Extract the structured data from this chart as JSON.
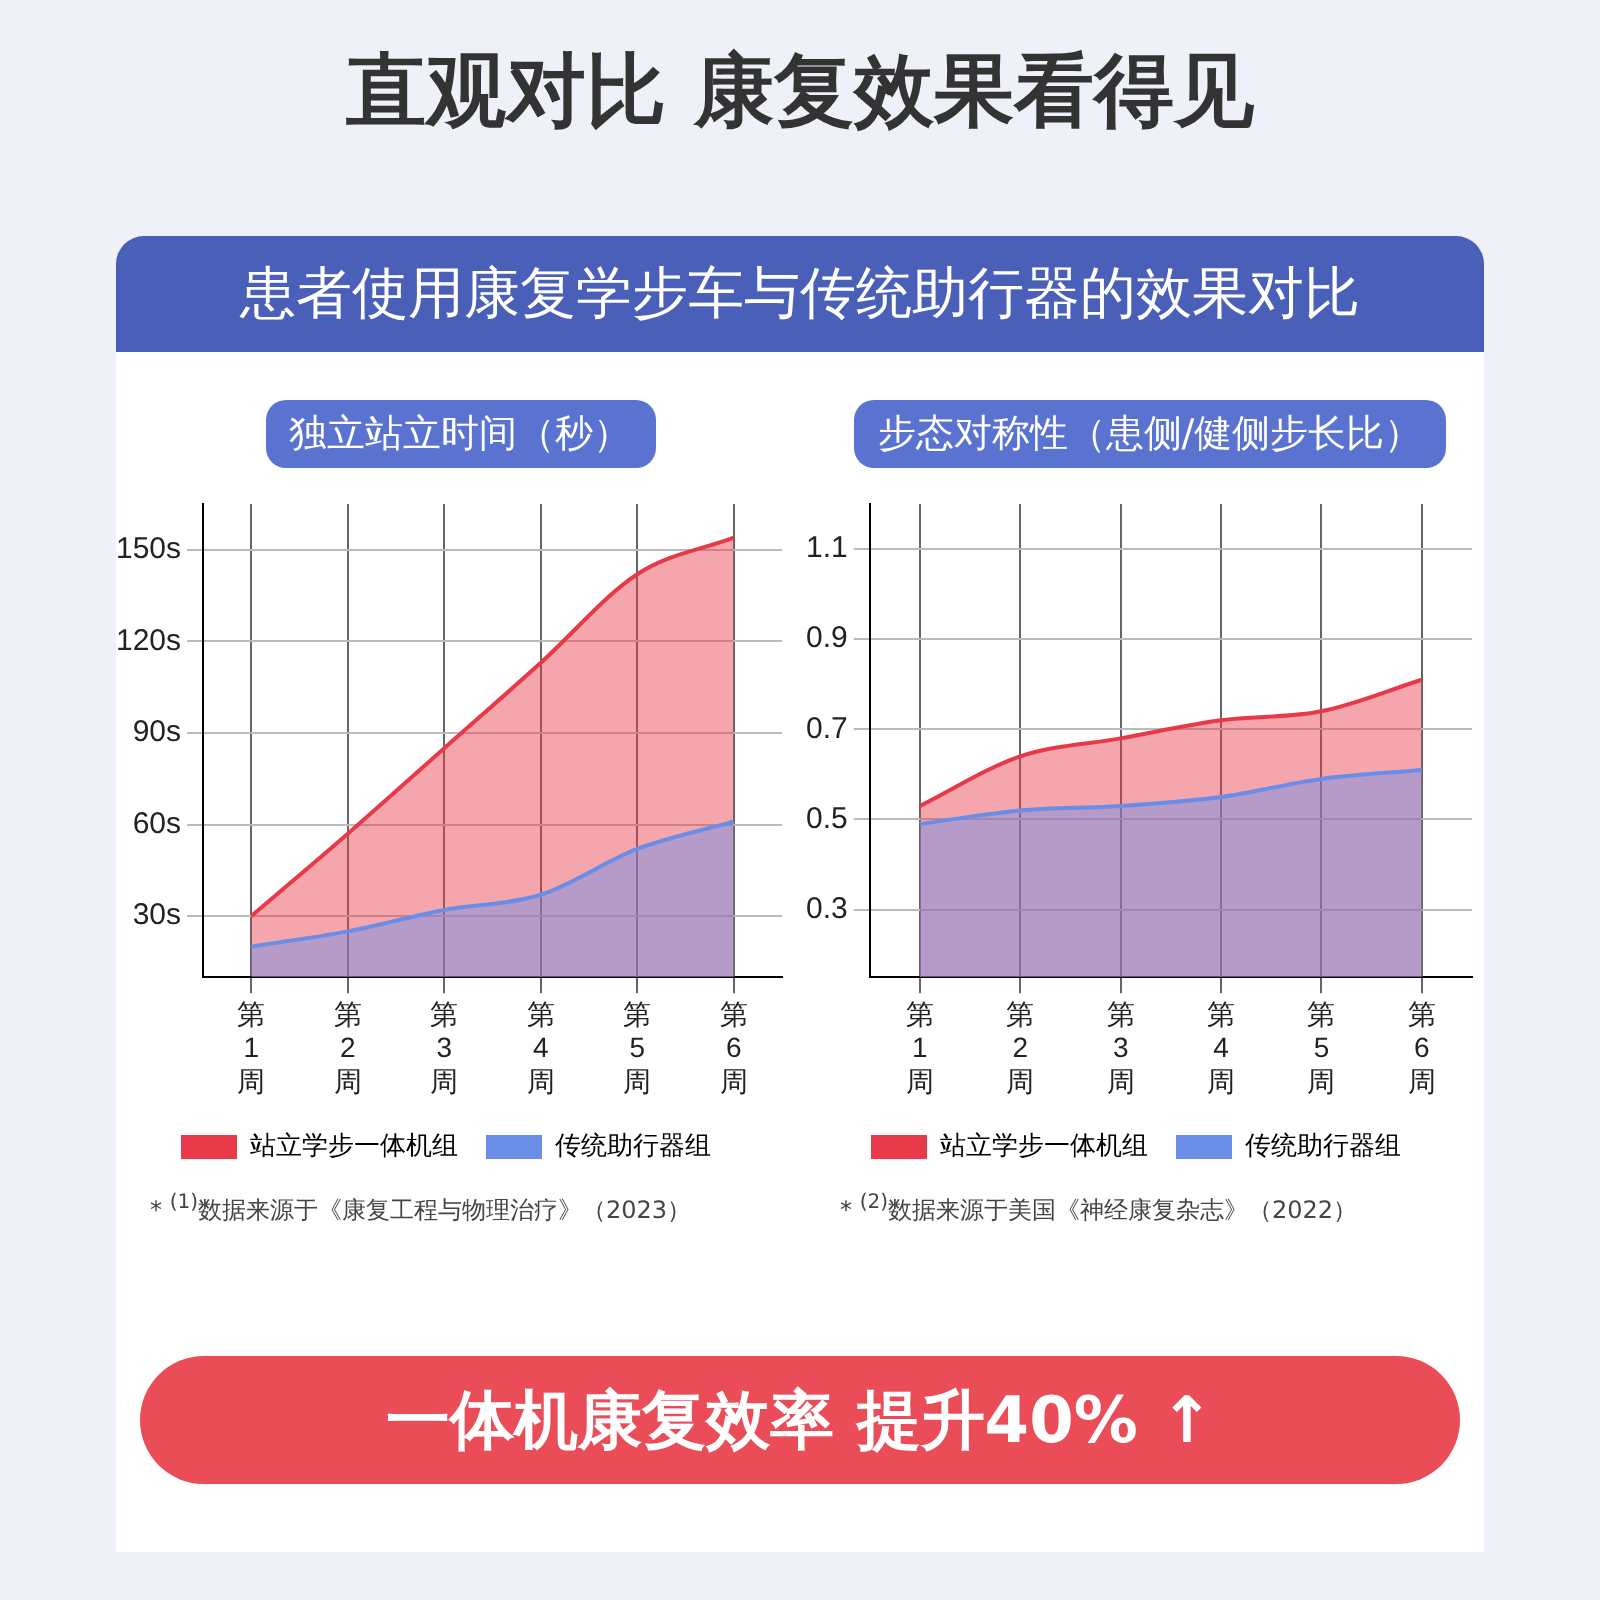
{
  "chart_data": [
    {
      "type": "area",
      "title": "独立站立时间（秒）",
      "categories": [
        "第1周",
        "第2周",
        "第3周",
        "第4周",
        "第5周",
        "第6周"
      ],
      "series": [
        {
          "name": "站立学步一体机组",
          "color": "#e8394a",
          "values": [
            30,
            57,
            85,
            113,
            142,
            154
          ]
        },
        {
          "name": "传统助行器组",
          "color": "#6a8ee8",
          "values": [
            20,
            25,
            32,
            37,
            52,
            61
          ]
        }
      ],
      "ylim": [
        10,
        165
      ],
      "yticks": [
        {
          "value": 30,
          "label": "30s"
        },
        {
          "value": 60,
          "label": "60s"
        },
        {
          "value": 90,
          "label": "90s"
        },
        {
          "value": 120,
          "label": "120s"
        },
        {
          "value": 150,
          "label": "150s"
        }
      ],
      "grid": true,
      "legend": "bottom",
      "marker": "none",
      "annotations": [
        "直观对比 康复效果看得见",
        "患者使用康复学步车与传统助行器的效果对比",
        "* $^{(1)}$数据来源于《康复工程与物理治疗》（2023）"
      ]
    },
    {
      "type": "area",
      "title": "步态对称性（患侧/健侧步长比）",
      "categories": [
        "第1周",
        "第2周",
        "第3周",
        "第4周",
        "第5周",
        "第6周"
      ],
      "series": [
        {
          "name": "站立学步一体机组",
          "color": "#e8394a",
          "values": [
            0.53,
            0.64,
            0.68,
            0.72,
            0.74,
            0.81
          ]
        },
        {
          "name": "传统助行器组",
          "color": "#6a8ee8",
          "values": [
            0.49,
            0.52,
            0.53,
            0.55,
            0.59,
            0.61
          ]
        }
      ],
      "ylim": [
        0.15,
        1.2
      ],
      "yticks": [
        0.3,
        0.5,
        0.7,
        0.9,
        1.1
      ],
      "grid": true,
      "legend": "bottom",
      "marker": "none",
      "annotations": [
        "* $^{(2)}$数据来源于美国《神经康复杂志》（2022）",
        "一体机康复效率 提升40% ↑"
      ]
    }
  ]
}
